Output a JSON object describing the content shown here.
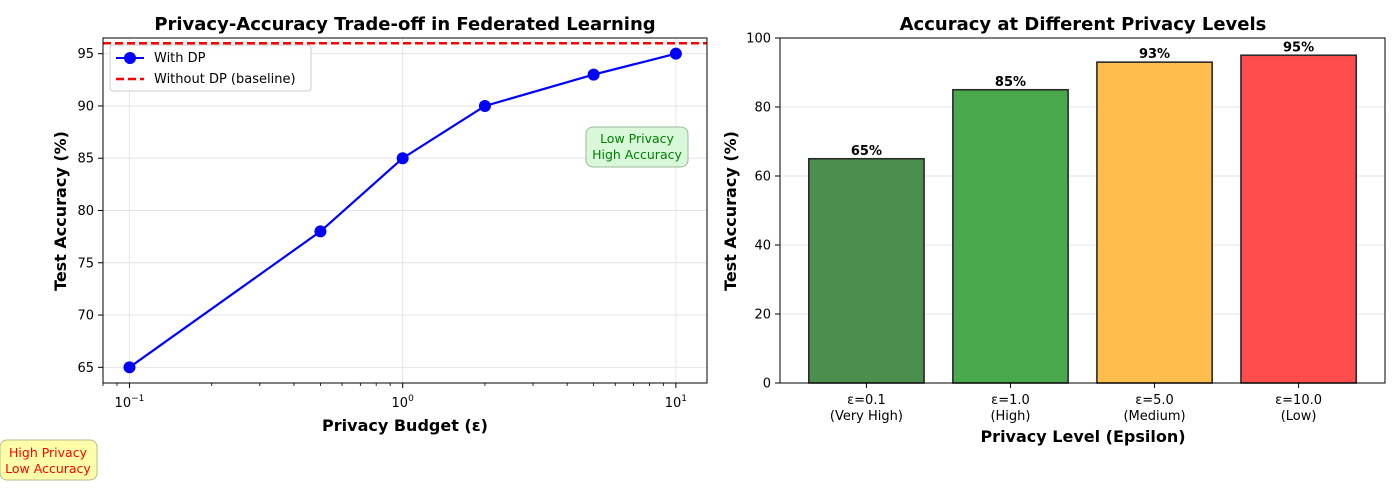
{
  "chart_data": [
    {
      "type": "line",
      "title": "Privacy-Accuracy Trade-off in Federated Learning",
      "xlabel": "Privacy Budget (ε)",
      "ylabel": "Test Accuracy (%)",
      "xscale": "log",
      "xlim": [
        0.08,
        13
      ],
      "ylim": [
        63.5,
        96.5
      ],
      "xticks": [
        {
          "value": 0.1,
          "base": "10",
          "exp": "−1"
        },
        {
          "value": 1,
          "base": "10",
          "exp": "0"
        },
        {
          "value": 10,
          "base": "10",
          "exp": "1"
        }
      ],
      "yticks": [
        65,
        70,
        75,
        80,
        85,
        90,
        95
      ],
      "grid": true,
      "legend": {
        "placement": "top-left",
        "entries": [
          {
            "label": "With DP",
            "color": "#0000ff",
            "style": "solid-marker"
          },
          {
            "label": "Without DP (baseline)",
            "color": "#ff0000",
            "style": "dashed"
          }
        ]
      },
      "series": [
        {
          "name": "With DP",
          "color": "#0000ff",
          "x": [
            0.1,
            0.5,
            1.0,
            2.0,
            5.0,
            10.0
          ],
          "y": [
            65,
            78,
            85,
            90,
            93,
            95
          ]
        }
      ],
      "baseline": {
        "name": "Without DP (baseline)",
        "value": 96,
        "color": "#ff0000"
      },
      "annotations": [
        {
          "lines": [
            "Low Privacy",
            "High Accuracy"
          ],
          "color": "#008000",
          "bg": "#d9f7d9"
        },
        {
          "lines": [
            "High Privacy",
            "Low Accuracy"
          ],
          "color": "#ff0000",
          "bg": "#ffffaa"
        }
      ]
    },
    {
      "type": "bar",
      "title": "Accuracy at Different Privacy Levels",
      "xlabel": "Privacy Level (Epsilon)",
      "ylabel": "Test Accuracy (%)",
      "ylim": [
        0,
        100
      ],
      "yticks": [
        0,
        20,
        40,
        60,
        80,
        100
      ],
      "grid": true,
      "categories": [
        [
          "ε=0.1",
          "(Very High)"
        ],
        [
          "ε=1.0",
          "(High)"
        ],
        [
          "ε=5.0",
          "(Medium)"
        ],
        [
          "ε=10.0",
          "(Low)"
        ]
      ],
      "values": [
        65,
        85,
        93,
        95
      ],
      "data_labels": [
        "65%",
        "85%",
        "93%",
        "95%"
      ],
      "colors": [
        "#4a8f4d",
        "#4aa84d",
        "#ffbd4d",
        "#ff4d4d"
      ]
    }
  ]
}
